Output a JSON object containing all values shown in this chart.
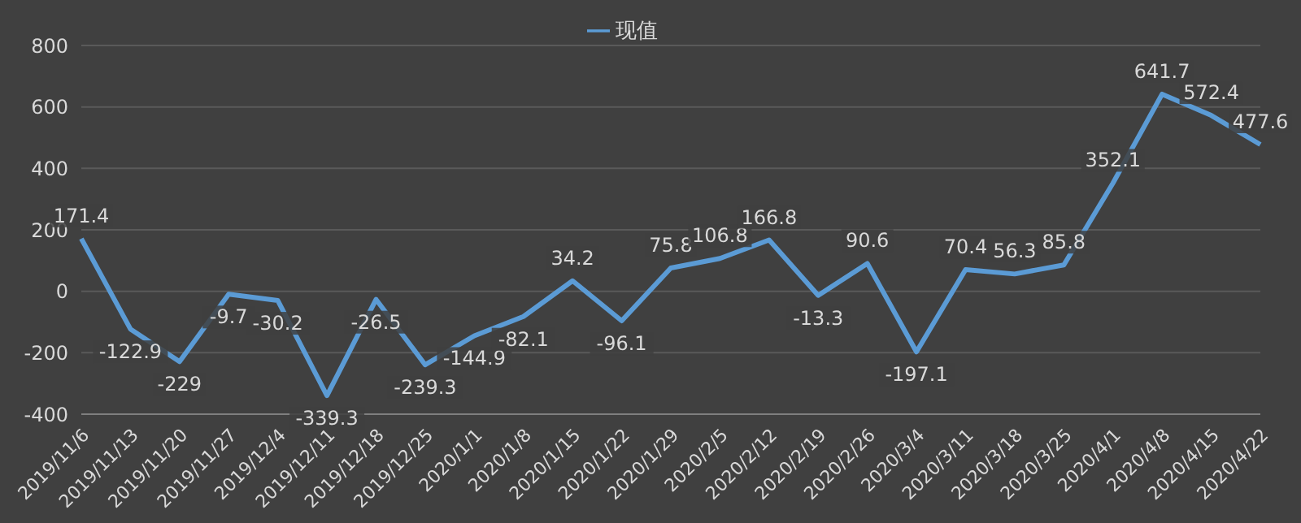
{
  "chart_data": {
    "type": "line",
    "categories": [
      "2019/11/6",
      "2019/11/13",
      "2019/11/20",
      "2019/11/27",
      "2019/12/4",
      "2019/12/11",
      "2019/12/18",
      "2019/12/25",
      "2020/1/1",
      "2020/1/8",
      "2020/1/15",
      "2020/1/22",
      "2020/1/29",
      "2020/2/5",
      "2020/2/12",
      "2020/2/19",
      "2020/2/26",
      "2020/3/4",
      "2020/3/11",
      "2020/3/18",
      "2020/3/25",
      "2020/4/1",
      "2020/4/8",
      "2020/4/15",
      "2020/4/22"
    ],
    "series": [
      {
        "name": "现值",
        "color": "#5b9bd5",
        "values": [
          171.4,
          -122.9,
          -229,
          -9.7,
          -30.2,
          -339.3,
          -26.5,
          -239.3,
          -144.9,
          -82.1,
          34.2,
          -96.1,
          75.8,
          106.8,
          166.8,
          -13.3,
          90.6,
          -197.1,
          70.4,
          56.3,
          85.8,
          352.1,
          641.7,
          572.4,
          477.6
        ]
      }
    ],
    "ylim": [
      -400,
      800
    ],
    "yticks": [
      -400,
      -200,
      0,
      200,
      400,
      600,
      800
    ],
    "grid": "y",
    "legend": "top",
    "marker": "none",
    "line_style": "solid",
    "data_labels": true
  }
}
